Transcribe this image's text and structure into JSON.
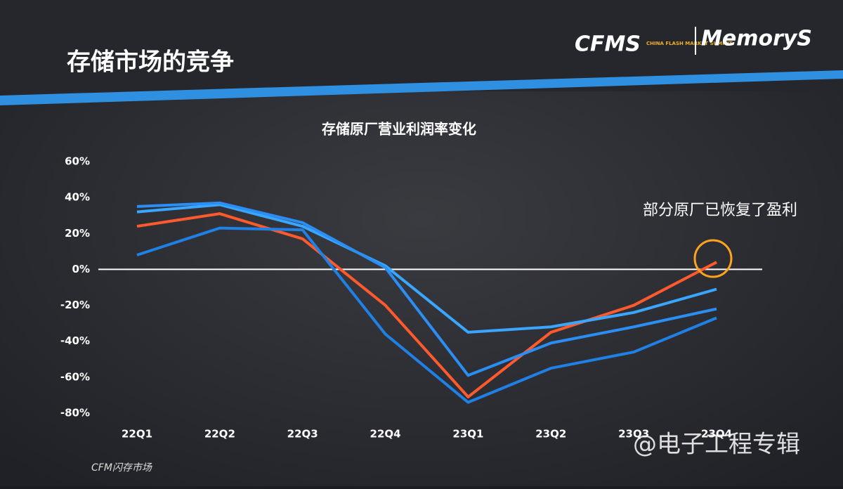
{
  "slide": {
    "title": "存储市场的竞争",
    "logo_left": "CFMS",
    "logo_sub": "CHINA FLASH MARKET SUMMIT",
    "logo_right": "MemoryS",
    "footer": "CFM闪存市场",
    "watermark": "@电子工程专辑"
  },
  "chart_data": {
    "type": "line",
    "title": "存储原厂营业利润率变化",
    "annotation": "部分原厂已恢复了盈利",
    "categories": [
      "22Q1",
      "22Q2",
      "22Q3",
      "22Q4",
      "23Q1",
      "23Q2",
      "23Q3",
      "23Q4"
    ],
    "series": [
      {
        "color": "#ff5a2e",
        "values": [
          24,
          31,
          17,
          -20,
          -71,
          -35,
          -20,
          4
        ]
      },
      {
        "color": "#3aa6ff",
        "values": [
          32,
          36,
          24,
          2,
          -35,
          -32,
          -24,
          -11
        ]
      },
      {
        "color": "#2a8ef5",
        "values": [
          35,
          37,
          26,
          1,
          -59,
          -41,
          -32,
          -22
        ]
      },
      {
        "color": "#1f80e6",
        "values": [
          8,
          23,
          22,
          -36,
          -74,
          -55,
          -46,
          -27
        ]
      }
    ],
    "ylim": [
      -80,
      60
    ],
    "yticks": [
      {
        "value": 60,
        "label": "60%"
      },
      {
        "value": 40,
        "label": "40%"
      },
      {
        "value": 20,
        "label": "20%"
      },
      {
        "value": 0,
        "label": "0%"
      },
      {
        "value": -20,
        "label": "-20%"
      },
      {
        "value": -40,
        "label": "-40%"
      },
      {
        "value": -60,
        "label": "-60%"
      },
      {
        "value": -80,
        "label": "-80%"
      }
    ],
    "zero_line": true
  }
}
